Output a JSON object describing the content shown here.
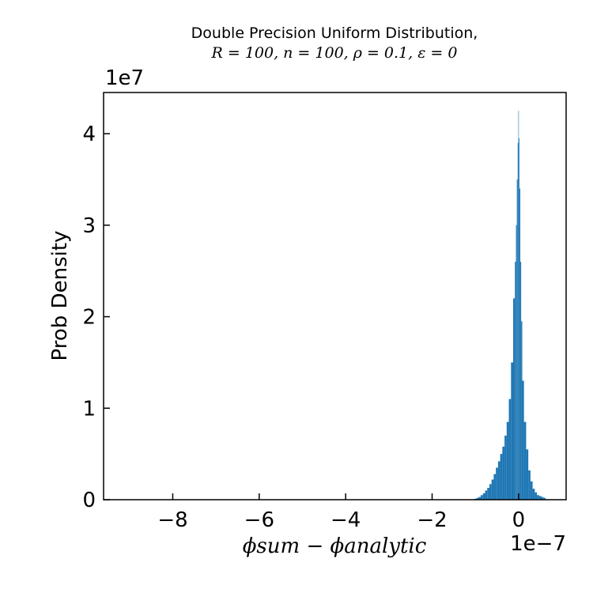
{
  "chart_data": {
    "type": "bar",
    "title": "Double Precision Uniform Distribution,",
    "subtitle": "R = 100, n = 100, ρ = 0.1, ε = 0",
    "xlabel": "ϕsum − ϕanalytic",
    "ylabel": "Prob Density",
    "x_offset_label": "1e−7",
    "y_offset_label": "1e7",
    "xlim": [
      -9.6,
      1.1
    ],
    "ylim": [
      0,
      4.45
    ],
    "xticks": [
      -8,
      -6,
      -4,
      -2,
      0
    ],
    "xtick_labels": [
      "−8",
      "−6",
      "−4",
      "−2",
      "0"
    ],
    "yticks": [
      0,
      1,
      2,
      3,
      4
    ],
    "ytick_labels": [
      "0",
      "1",
      "2",
      "3",
      "4"
    ],
    "grid": false,
    "legend": false,
    "color": "#1f77b4",
    "histogram": {
      "x": [
        -1.0,
        -0.95,
        -0.9,
        -0.85,
        -0.8,
        -0.75,
        -0.7,
        -0.65,
        -0.6,
        -0.55,
        -0.5,
        -0.45,
        -0.4,
        -0.35,
        -0.3,
        -0.25,
        -0.2,
        -0.15,
        -0.1,
        -0.07,
        -0.05,
        -0.03,
        -0.01,
        0.0,
        0.01,
        0.03,
        0.05,
        0.07,
        0.1,
        0.15,
        0.2,
        0.25,
        0.3,
        0.35,
        0.4,
        0.45,
        0.5,
        0.55,
        0.6
      ],
      "values": [
        0.01,
        0.02,
        0.03,
        0.05,
        0.07,
        0.1,
        0.13,
        0.17,
        0.22,
        0.28,
        0.35,
        0.42,
        0.5,
        0.58,
        0.7,
        0.85,
        1.1,
        1.5,
        2.2,
        2.6,
        3.0,
        3.5,
        3.9,
        4.25,
        3.95,
        3.4,
        2.6,
        1.95,
        1.3,
        0.85,
        0.55,
        0.32,
        0.2,
        0.12,
        0.08,
        0.05,
        0.04,
        0.03,
        0.02
      ]
    }
  }
}
